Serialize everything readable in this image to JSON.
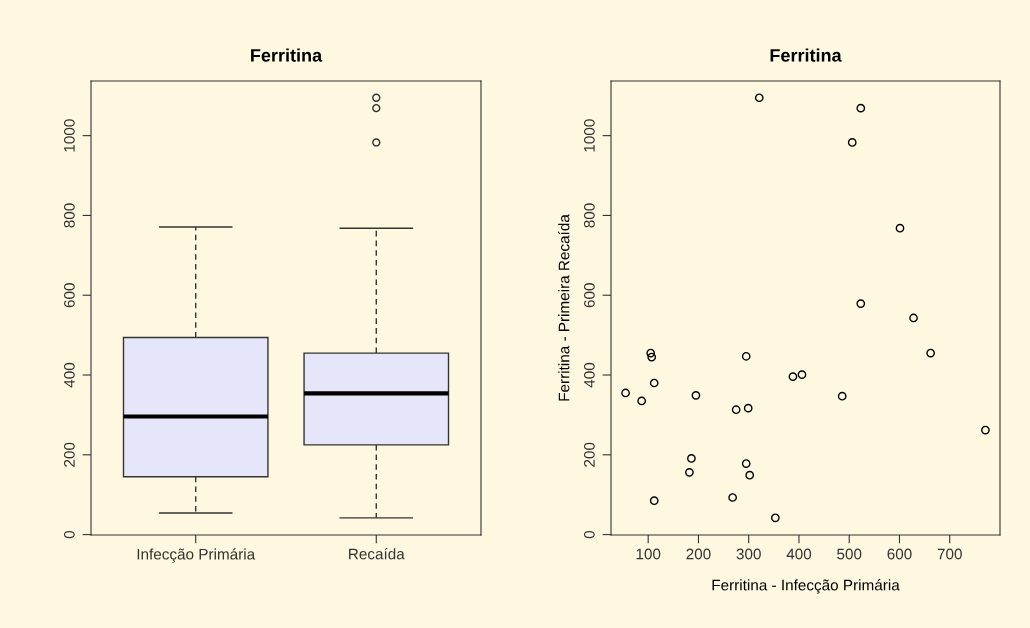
{
  "chart_data": [
    {
      "type": "box",
      "title": "Ferritina",
      "categories": [
        "Infecção Primária",
        "Recaída"
      ],
      "color": "#e6e6fa",
      "boxes": [
        {
          "low": 54,
          "q1": 145,
          "median": 296,
          "q3": 494,
          "high": 771
        },
        {
          "low": 42,
          "q1": 225,
          "median": 354,
          "q3": 455,
          "high": 768,
          "outliers": [
            983,
            1069,
            1095
          ]
        }
      ],
      "ylim": [
        -1,
        1137
      ],
      "yticks": [
        0,
        200,
        400,
        600,
        800,
        1000
      ],
      "grid": false,
      "legend": false
    },
    {
      "type": "scatter",
      "title": "Ferritina",
      "xlabel": "Ferritina - Infecção Primária",
      "ylabel": "Ferritina - Primeira Recaída",
      "marker": "circle",
      "series": [
        {
          "color": "#000000",
          "x": [
            55,
            87,
            105,
            107,
            112,
            112,
            182,
            186,
            195,
            268,
            275,
            295,
            295,
            299,
            302,
            321,
            353,
            388,
            406,
            486,
            506,
            523,
            523,
            601,
            628,
            662,
            771
          ],
          "values": [
            355,
            335,
            455,
            445,
            380,
            85,
            156,
            191,
            349,
            93,
            313,
            447,
            178,
            317,
            149,
            1095,
            42,
            396,
            401,
            347,
            983,
            1069,
            579,
            768,
            543,
            455,
            262
          ]
        }
      ],
      "xlim": [
        26,
        800
      ],
      "xticks": [
        100,
        200,
        300,
        400,
        500,
        600,
        700
      ],
      "ylim": [
        -1,
        1137
      ],
      "yticks": [
        0,
        200,
        400,
        600,
        800,
        1000
      ],
      "grid": false,
      "legend": false
    }
  ]
}
